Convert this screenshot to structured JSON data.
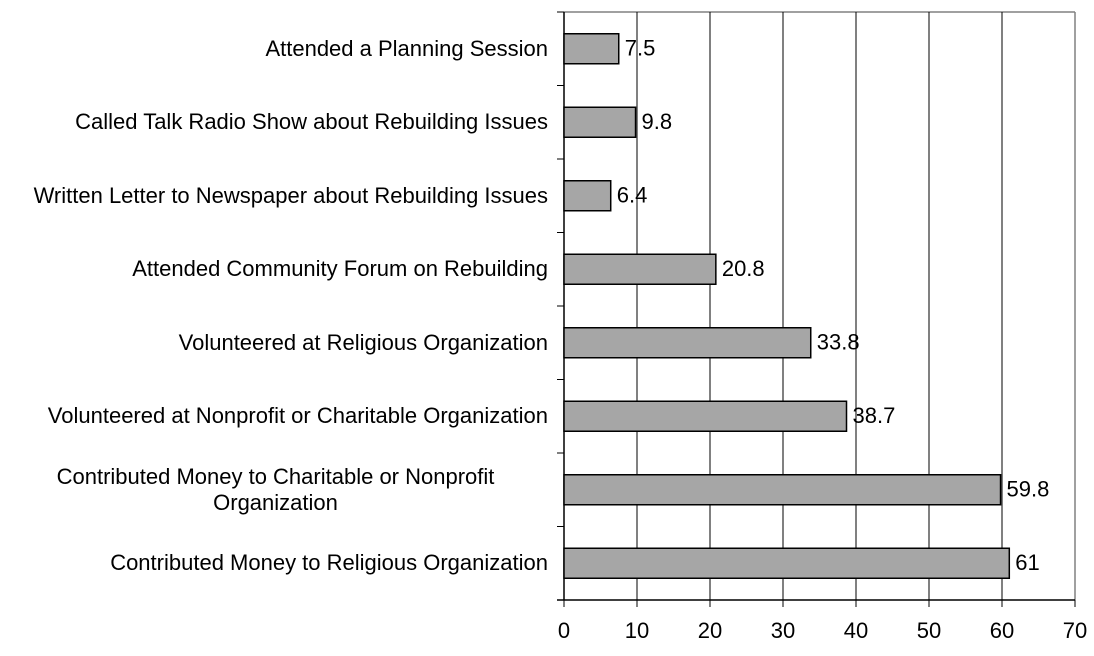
{
  "chart_data": {
    "type": "bar",
    "orientation": "horizontal",
    "categories": [
      "Attended a Planning Session",
      "Called Talk Radio Show about Rebuilding Issues",
      "Written Letter to Newspaper about Rebuilding Issues",
      "Attended Community Forum on Rebuilding",
      "Volunteered at Religious Organization",
      "Volunteered at Nonprofit or Charitable Organization",
      "Contributed Money to Charitable or Nonprofit Organization",
      "Contributed Money to Religious Organization"
    ],
    "values": [
      7.5,
      9.8,
      6.4,
      20.8,
      33.8,
      38.7,
      59.8,
      61
    ],
    "color": "#a6a6a6",
    "xlim": [
      0,
      70
    ],
    "xticks": [
      0,
      10,
      20,
      30,
      40,
      50,
      60,
      70
    ],
    "grid": true
  }
}
